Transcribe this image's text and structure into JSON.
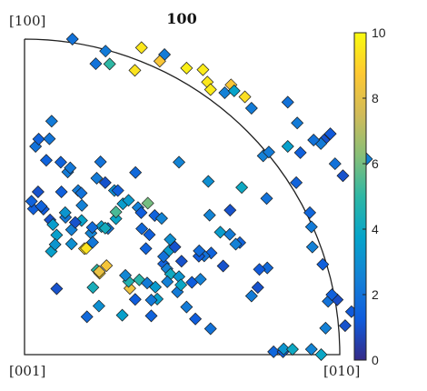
{
  "chart_data": {
    "type": "scatter",
    "title": "100",
    "corner_labels": {
      "top": "[100]",
      "origin": "[001]",
      "right": "[010]"
    },
    "colorbar": {
      "min": 0,
      "max": 10,
      "ticks": [
        "0",
        "2",
        "4",
        "6",
        "8",
        "10"
      ],
      "colormap": "parula"
    },
    "x": [
      0.152,
      0.226,
      0.27,
      0.257,
      0.35,
      0.371,
      0.444,
      0.429,
      0.514,
      0.566,
      0.58,
      0.59,
      0.635,
      0.655,
      0.665,
      0.699,
      0.72,
      0.835,
      0.97,
      0.95,
      0.985,
      0.757,
      0.775,
      0.875,
      0.835,
      0.865,
      0.94,
      1.085,
      0.917,
      1.01,
      0.862,
      0.768,
      0.689,
      0.583,
      0.49,
      0.352,
      0.256,
      0.241,
      0.137,
      0.069,
      0.035,
      0.045,
      0.079,
      0.086,
      0.115,
      0.117,
      0.145,
      0.17,
      0.229,
      0.285,
      0.296,
      0.18,
      0.182,
      0.181,
      0.13,
      0.149,
      0.211,
      0.265,
      0.244,
      0.216,
      0.215,
      0.161,
      0.081,
      0.06,
      0.043,
      0.028,
      0.022,
      0.053,
      0.09,
      0.129,
      0.102,
      0.085,
      0.097,
      0.149,
      0.19,
      0.196,
      0.256,
      0.29,
      0.29,
      0.312,
      0.33,
      0.36,
      0.37,
      0.372,
      0.396,
      0.391,
      0.413,
      0.435,
      0.385,
      0.459,
      0.477,
      0.441,
      0.452,
      0.463,
      0.49,
      0.531,
      0.558,
      0.592,
      0.621,
      0.651,
      0.683,
      0.63,
      0.57,
      0.553,
      0.554,
      0.498,
      0.441,
      0.485,
      0.421,
      0.402,
      0.402,
      0.351,
      0.31,
      0.236,
      0.217,
      0.23,
      0.238,
      0.237,
      0.26,
      0.334,
      0.33,
      0.364,
      0.389,
      0.415,
      0.453,
      0.496,
      0.514,
      0.542,
      0.59,
      0.79,
      0.82,
      0.822,
      0.85,
      0.91,
      0.941,
      0.955,
      0.963,
      1.017,
      1.037,
      0.992,
      0.975,
      0.946,
      0.913,
      0.91,
      0.905,
      0.77,
      0.72,
      0.74,
      0.745,
      0.67,
      0.652,
      0.587,
      0.462,
      0.32,
      0.198,
      0.102
    ],
    "y": [
      1.0,
      0.922,
      0.921,
      0.962,
      0.901,
      0.973,
      0.951,
      0.93,
      0.908,
      0.903,
      0.864,
      0.84,
      0.83,
      0.855,
      0.836,
      0.817,
      0.781,
      0.8,
      0.7,
      0.68,
      0.605,
      0.63,
      0.642,
      0.64,
      0.66,
      0.734,
      0.669,
      0.62,
      0.68,
      0.567,
      0.545,
      0.495,
      0.53,
      0.549,
      0.61,
      0.577,
      0.545,
      0.611,
      0.579,
      0.616,
      0.66,
      0.683,
      0.684,
      0.74,
      0.61,
      0.516,
      0.592,
      0.52,
      0.559,
      0.52,
      0.52,
      0.512,
      0.473,
      0.425,
      0.435,
      0.396,
      0.385,
      0.4,
      0.406,
      0.356,
      0.403,
      0.419,
      0.427,
      0.461,
      0.516,
      0.462,
      0.486,
      0.47,
      0.412,
      0.45,
      0.379,
      0.327,
      0.349,
      0.351,
      0.336,
      0.337,
      0.401,
      0.431,
      0.452,
      0.478,
      0.489,
      0.466,
      0.45,
      0.399,
      0.38,
      0.48,
      0.441,
      0.432,
      0.336,
      0.33,
      0.341,
      0.288,
      0.272,
      0.255,
      0.247,
      0.229,
      0.239,
      0.322,
      0.388,
      0.381,
      0.355,
      0.281,
      0.313,
      0.312,
      0.329,
      0.296,
      0.311,
      0.199,
      0.176,
      0.123,
      0.173,
      0.175,
      0.125,
      0.154,
      0.213,
      0.268,
      0.258,
      0.263,
      0.282,
      0.21,
      0.232,
      0.237,
      0.227,
      0.214,
      0.231,
      0.221,
      0.151,
      0.113,
      0.082,
      0.009,
      0.009,
      0.018,
      0.017,
      0.017,
      0.0,
      0.084,
      0.169,
      0.092,
      0.136,
      0.174,
      0.19,
      0.286,
      0.341,
      0.405,
      0.45,
      0.275,
      0.186,
      0.213,
      0.27,
      0.35,
      0.458,
      0.442,
      0.365,
      0.251,
      0.12,
      0.209
    ],
    "color_values": [
      2.0,
      2.0,
      5.0,
      2.3,
      9.4,
      9.5,
      2.3,
      8.6,
      9.7,
      9.6,
      9.5,
      9.6,
      2.5,
      8.6,
      3.7,
      9.3,
      2.3,
      2.0,
      1.2,
      1.0,
      2.0,
      2.5,
      2.3,
      1.4,
      3.6,
      2.3,
      2.3,
      2.5,
      2.0,
      1.0,
      1.5,
      2.0,
      4.0,
      3.0,
      2.6,
      1.7,
      1.0,
      2.0,
      2.3,
      1.5,
      2.0,
      1.5,
      2.1,
      2.3,
      1.5,
      1.4,
      2.2,
      2.3,
      2.3,
      3.0,
      1.4,
      2.0,
      2.5,
      3.7,
      2.2,
      2.5,
      2.6,
      2.1,
      3.6,
      2.2,
      1.8,
      1.0,
      1.0,
      1.2,
      1.0,
      1.4,
      1.5,
      1.5,
      3.5,
      3.2,
      3.6,
      3.6,
      3.2,
      3.0,
      9.2,
      9.4,
      4.2,
      3.8,
      5.4,
      3.5,
      3.4,
      2.5,
      1.3,
      1.7,
      1.4,
      6.0,
      1.5,
      2.6,
      1.5,
      3.5,
      1.0,
      1.5,
      2.5,
      4.1,
      3.2,
      1.3,
      2.5,
      1.5,
      3.5,
      2.3,
      1.5,
      1.0,
      2.0,
      1.3,
      1.8,
      1.0,
      2.0,
      2.3,
      3.6,
      1.5,
      2.2,
      1.3,
      3.6,
      3.0,
      4.3,
      5.0,
      9.0,
      8.2,
      8.5,
      8.3,
      4.6,
      4.8,
      2.3,
      3.4,
      2.5,
      3.9,
      2.3,
      1.3,
      2.0,
      1.6,
      1.4,
      3.2,
      4.0,
      2.6,
      3.9,
      2.5,
      2.0,
      1.0,
      1.2,
      0.9,
      1.4,
      1.4,
      2.5,
      2.3,
      1.6,
      1.7,
      2.3,
      1.0,
      1.2,
      2.5,
      1.0,
      2.6,
      3.0,
      2.7,
      1.7,
      1.0
    ],
    "xlim": [
      0,
      1.09
    ],
    "ylim": [
      0,
      1.09
    ],
    "grid": false,
    "legend": "none"
  }
}
